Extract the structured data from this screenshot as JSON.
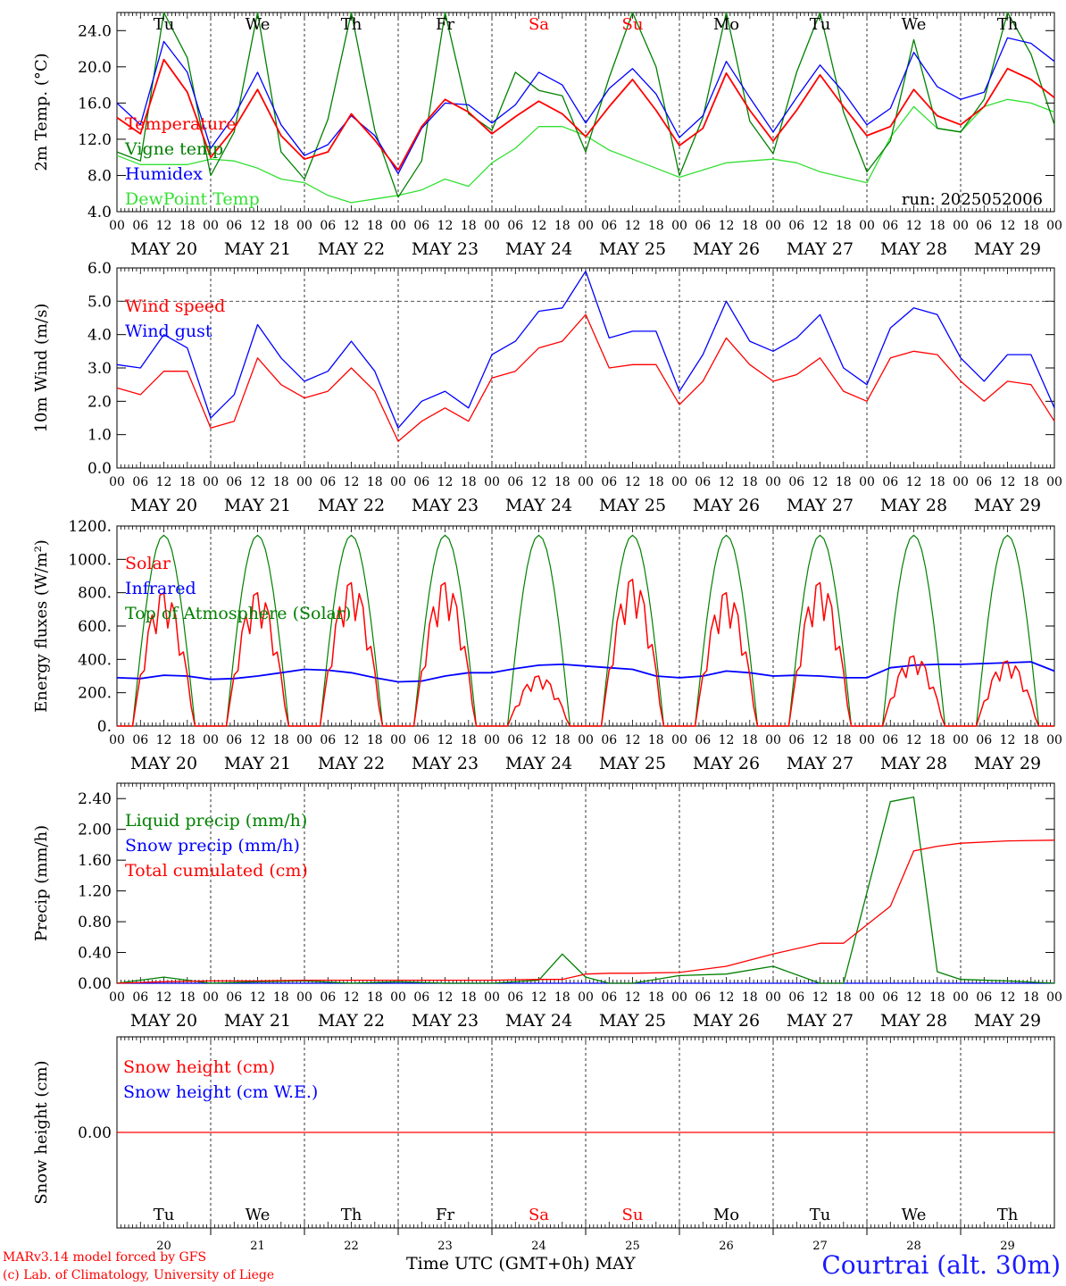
{
  "footer": {
    "credit_line1": "MARv3.14 model forced by GFS",
    "credit_line2": "(c) Lab. of Climatology, University of Liege",
    "xlabel": "Time UTC (GMT+0h) MAY",
    "station": "Courtrai (alt. 30m)"
  },
  "colors": {
    "red": "#ff0000",
    "green": "#008000",
    "blue": "#0000ff",
    "lightgreen": "#33e033"
  },
  "chart_data": [
    {
      "type": "line",
      "id": "temp",
      "ylabel": "2m Temp. (°C)",
      "ylim": [
        4,
        26
      ],
      "yticks": [
        "4.0",
        "8.0",
        "12.0",
        "16.0",
        "20.0",
        "24.0"
      ],
      "ytick_values": [
        4,
        8,
        12,
        16,
        20,
        24
      ],
      "grid": "dashed gray line at each midnight",
      "day_names": [
        "Tu",
        "We",
        "Th",
        "Fr",
        "Sa",
        "Su",
        "Mo",
        "Tu",
        "We",
        "Th"
      ],
      "run": "run: 2025052006",
      "x_hours": [
        0,
        6,
        12,
        18,
        24,
        30,
        36,
        42,
        48,
        54,
        60,
        66,
        72,
        78,
        84,
        90,
        96,
        102,
        108,
        114,
        120,
        126,
        132,
        138,
        144,
        150,
        156,
        162,
        168,
        174,
        180,
        186,
        192,
        198,
        204,
        210,
        216,
        222,
        228,
        234,
        240
      ],
      "series": [
        {
          "name": "Temperature",
          "color": "#ff0000",
          "values": [
            14.4,
            12.6,
            20.8,
            17.2,
            10.0,
            13.2,
            17.5,
            12.4,
            9.8,
            10.6,
            14.8,
            11.9,
            8.6,
            13.4,
            16.4,
            15.0,
            12.6,
            14.5,
            16.2,
            14.8,
            12.3,
            15.6,
            18.6,
            15.2,
            11.3,
            13.2,
            19.3,
            15.2,
            11.8,
            15.2,
            19.1,
            15.6,
            12.4,
            13.4,
            17.5,
            14.6,
            13.6,
            15.6,
            19.8,
            18.6,
            16.6
          ]
        },
        {
          "name": "Vigne temp",
          "color": "#008000",
          "values": [
            10.6,
            9.6,
            26.0,
            21.0,
            8.0,
            12.8,
            30.0,
            10.6,
            7.6,
            14.2,
            30.0,
            13.0,
            5.6,
            9.6,
            30.0,
            14.8,
            13.0,
            19.4,
            17.4,
            16.8,
            10.6,
            18.8,
            30.0,
            20.0,
            8.0,
            14.4,
            30.0,
            14.0,
            10.4,
            19.4,
            30.0,
            15.0,
            8.4,
            11.8,
            23.0,
            13.2,
            12.8,
            16.4,
            26.4,
            21.4,
            13.6
          ]
        },
        {
          "name": "Humidex",
          "color": "#0000ff",
          "values": [
            16.0,
            13.6,
            22.8,
            19.4,
            11.0,
            14.6,
            19.4,
            13.6,
            10.2,
            11.4,
            14.6,
            12.4,
            8.2,
            13.2,
            16.0,
            15.8,
            13.8,
            15.8,
            19.4,
            18.0,
            13.8,
            17.6,
            19.8,
            17.0,
            12.2,
            14.6,
            20.6,
            16.6,
            12.8,
            16.6,
            20.2,
            17.2,
            13.6,
            15.4,
            21.6,
            17.8,
            16.4,
            17.2,
            23.2,
            22.6,
            20.6
          ]
        },
        {
          "name": "DewPoint Temp",
          "color": "#33e033",
          "values": [
            10.2,
            9.2,
            9.2,
            9.2,
            9.8,
            9.6,
            8.8,
            7.6,
            7.2,
            5.8,
            5.0,
            5.4,
            5.8,
            6.4,
            7.6,
            6.8,
            9.4,
            11.0,
            13.4,
            13.4,
            12.4,
            10.8,
            9.8,
            8.8,
            7.8,
            8.6,
            9.4,
            9.6,
            9.8,
            9.4,
            8.4,
            7.8,
            7.2,
            12.2,
            15.6,
            13.2,
            12.8,
            15.6,
            16.4,
            16.0,
            15.0
          ]
        }
      ]
    },
    {
      "type": "line",
      "id": "wind",
      "ylabel": "10m Wind (m/s)",
      "ylim": [
        0,
        6
      ],
      "yticks": [
        "0.0",
        "1.0",
        "2.0",
        "3.0",
        "4.0",
        "5.0",
        "6.0"
      ],
      "ytick_values": [
        0,
        1,
        2,
        3,
        4,
        5,
        6
      ],
      "reference_line": 5.0,
      "x_hours": [
        0,
        6,
        12,
        18,
        24,
        30,
        36,
        42,
        48,
        54,
        60,
        66,
        72,
        78,
        84,
        90,
        96,
        102,
        108,
        114,
        120,
        126,
        132,
        138,
        144,
        150,
        156,
        162,
        168,
        174,
        180,
        186,
        192,
        198,
        204,
        210,
        216,
        222,
        228,
        234,
        240
      ],
      "series": [
        {
          "name": "Wind speed",
          "color": "#ff0000",
          "values": [
            2.4,
            2.2,
            2.9,
            2.9,
            1.2,
            1.4,
            3.3,
            2.5,
            2.1,
            2.3,
            3.0,
            2.3,
            0.8,
            1.4,
            1.8,
            1.4,
            2.7,
            2.9,
            3.6,
            3.8,
            4.6,
            3.0,
            3.1,
            3.1,
            1.9,
            2.6,
            3.9,
            3.1,
            2.6,
            2.8,
            3.3,
            2.3,
            2.0,
            3.3,
            3.5,
            3.4,
            2.6,
            2.0,
            2.6,
            2.5,
            1.4
          ]
        },
        {
          "name": "Wind gust",
          "color": "#0000ff",
          "values": [
            3.1,
            3.0,
            4.0,
            3.6,
            1.5,
            2.2,
            4.3,
            3.3,
            2.6,
            2.9,
            3.8,
            2.9,
            1.2,
            2.0,
            2.3,
            1.8,
            3.4,
            3.8,
            4.7,
            4.8,
            5.9,
            3.9,
            4.1,
            4.1,
            2.3,
            3.4,
            5.0,
            3.8,
            3.5,
            3.9,
            4.6,
            3.0,
            2.5,
            4.2,
            4.8,
            4.6,
            3.3,
            2.6,
            3.4,
            3.4,
            1.8
          ]
        }
      ]
    },
    {
      "type": "line",
      "id": "energy",
      "ylabel": "Energy fluxes (W/m²)",
      "ylim": [
        0,
        1200
      ],
      "yticks": [
        "0.",
        "200.",
        "400.",
        "600.",
        "800.",
        "1000.",
        "1200."
      ],
      "ytick_values": [
        0,
        200,
        400,
        600,
        800,
        1000,
        1200
      ],
      "solar_peaks": [
        800,
        800,
        860,
        860,
        300,
        880,
        800,
        860,
        420,
        390
      ],
      "toa_peak": 1145,
      "x_hours": [
        0,
        6,
        12,
        18,
        24,
        30,
        36,
        42,
        48,
        54,
        60,
        66,
        72,
        78,
        84,
        90,
        96,
        102,
        108,
        114,
        120,
        126,
        132,
        138,
        144,
        150,
        156,
        162,
        168,
        174,
        180,
        186,
        192,
        198,
        204,
        210,
        216,
        222,
        228,
        234,
        240
      ],
      "series": [
        {
          "name": "Solar",
          "color": "#ff0000",
          "values": []
        },
        {
          "name": "Infrared",
          "color": "#0000ff",
          "values": [
            290,
            285,
            305,
            300,
            280,
            285,
            300,
            320,
            340,
            335,
            320,
            290,
            265,
            270,
            300,
            320,
            320,
            345,
            365,
            370,
            360,
            350,
            340,
            300,
            290,
            300,
            330,
            320,
            300,
            305,
            300,
            290,
            290,
            350,
            365,
            370,
            370,
            375,
            380,
            385,
            330
          ]
        },
        {
          "name": "Top of Atmosphere (Solar)",
          "color": "#008000",
          "values": []
        }
      ]
    },
    {
      "type": "line",
      "id": "precip",
      "ylabel": "Precip (mm/h)",
      "ylim": [
        0,
        2.6
      ],
      "yticks": [
        "0.00",
        "0.40",
        "0.80",
        "1.20",
        "1.60",
        "2.00",
        "2.40"
      ],
      "ytick_values": [
        0,
        0.4,
        0.8,
        1.2,
        1.6,
        2.0,
        2.4
      ],
      "x_hours": [
        0,
        12,
        24,
        36,
        48,
        60,
        72,
        84,
        96,
        108,
        114,
        120,
        126,
        132,
        144,
        156,
        168,
        180,
        186,
        198,
        204,
        210,
        216,
        228,
        240
      ],
      "series": [
        {
          "name": "Liquid precip (mm/h)",
          "color": "#008000",
          "values": [
            0,
            0.08,
            0,
            0.02,
            0.03,
            0,
            0.02,
            0,
            0,
            0.04,
            0.38,
            0.08,
            0,
            0,
            0.1,
            0.12,
            0.22,
            0,
            0,
            2.36,
            2.42,
            0.15,
            0.05,
            0.03,
            0
          ]
        },
        {
          "name": "Snow precip (mm/h)",
          "color": "#0000ff",
          "values": [
            0,
            0,
            0,
            0,
            0,
            0,
            0,
            0,
            0,
            0,
            0,
            0,
            0,
            0,
            0,
            0,
            0,
            0,
            0,
            0,
            0,
            0,
            0,
            0,
            0
          ]
        },
        {
          "name": "Total cumulated (cm)",
          "color": "#ff0000",
          "values": [
            0,
            0.02,
            0.03,
            0.03,
            0.04,
            0.04,
            0.04,
            0.04,
            0.04,
            0.05,
            0.05,
            0.12,
            0.13,
            0.13,
            0.14,
            0.22,
            0.38,
            0.52,
            0.52,
            1.0,
            1.72,
            1.78,
            1.82,
            1.85,
            1.86
          ]
        }
      ]
    },
    {
      "type": "line",
      "id": "snow",
      "ylabel": "Snow height (cm)",
      "ylim": [
        -0.1,
        0.1
      ],
      "yticks": [
        "0.00"
      ],
      "ytick_values": [
        0
      ],
      "day_names": [
        "Tu",
        "We",
        "Th",
        "Fr",
        "Sa",
        "Su",
        "Mo",
        "Tu",
        "We",
        "Th"
      ],
      "day_numbers": [
        "20",
        "21",
        "22",
        "23",
        "24",
        "25",
        "26",
        "27",
        "28",
        "29"
      ],
      "weekend_days": [
        "Sa",
        "Su"
      ],
      "series": [
        {
          "name": "Snow height (cm)",
          "color": "#ff0000",
          "values": [
            0,
            0
          ]
        },
        {
          "name": "Snow height (cm W.E.)",
          "color": "#0000ff",
          "values": [
            0,
            0
          ]
        }
      ]
    }
  ],
  "x_axis": {
    "hour_labels": [
      "00",
      "06",
      "12",
      "18"
    ],
    "final_label": "00",
    "date_labels": [
      "MAY 20",
      "MAY 21",
      "MAY 22",
      "MAY 23",
      "MAY 24",
      "MAY 25",
      "MAY 26",
      "MAY 27",
      "MAY 28",
      "MAY 29"
    ]
  }
}
